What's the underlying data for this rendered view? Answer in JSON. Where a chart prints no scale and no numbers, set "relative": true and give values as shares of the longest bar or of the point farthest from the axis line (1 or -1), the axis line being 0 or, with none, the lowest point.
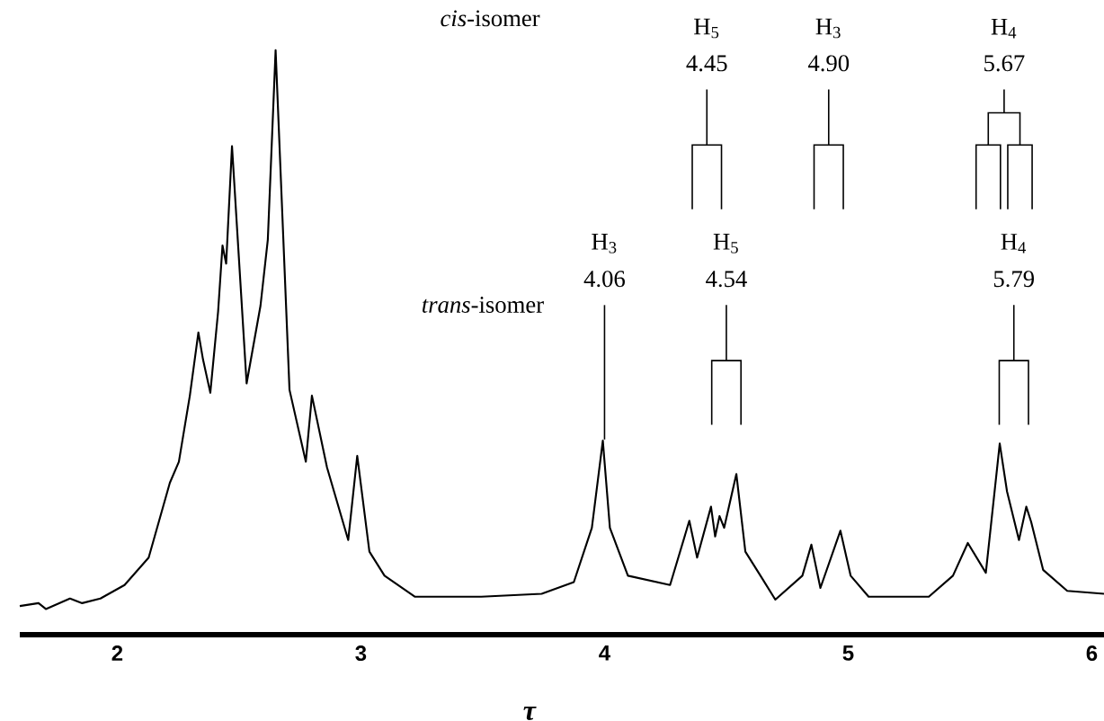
{
  "chart_data": {
    "type": "line",
    "relative": true,
    "xlabel": "τ",
    "xlim": [
      1.6,
      6.05
    ],
    "xticks": [
      2,
      3,
      4,
      5,
      6
    ],
    "x": [
      1.6,
      1.677,
      1.707,
      1.806,
      1.856,
      1.931,
      2.03,
      2.129,
      2.216,
      2.253,
      2.298,
      2.333,
      2.352,
      2.382,
      2.414,
      2.432,
      2.447,
      2.471,
      2.531,
      2.588,
      2.618,
      2.65,
      2.707,
      2.774,
      2.799,
      2.861,
      2.948,
      2.985,
      3.035,
      3.097,
      3.221,
      3.494,
      3.742,
      3.874,
      3.948,
      3.993,
      4.022,
      4.096,
      4.269,
      4.348,
      4.38,
      4.437,
      4.454,
      4.472,
      4.491,
      4.541,
      4.578,
      4.64,
      4.701,
      4.812,
      4.849,
      4.886,
      4.968,
      5.01,
      5.084,
      5.331,
      5.43,
      5.491,
      5.565,
      5.622,
      5.652,
      5.701,
      5.731,
      5.751,
      5.8,
      5.899,
      6.05
    ],
    "series": [
      {
        "color": "#000000",
        "values": [
          0.049,
          0.054,
          0.044,
          0.062,
          0.054,
          0.062,
          0.085,
          0.132,
          0.26,
          0.296,
          0.409,
          0.517,
          0.471,
          0.414,
          0.553,
          0.666,
          0.635,
          0.836,
          0.43,
          0.563,
          0.676,
          1.0,
          0.419,
          0.296,
          0.409,
          0.286,
          0.162,
          0.306,
          0.142,
          0.101,
          0.065,
          0.065,
          0.07,
          0.09,
          0.183,
          0.332,
          0.183,
          0.101,
          0.085,
          0.195,
          0.132,
          0.219,
          0.168,
          0.203,
          0.183,
          0.275,
          0.142,
          0.101,
          0.06,
          0.101,
          0.154,
          0.08,
          0.178,
          0.101,
          0.065,
          0.065,
          0.101,
          0.157,
          0.106,
          0.327,
          0.245,
          0.162,
          0.219,
          0.193,
          0.111,
          0.075,
          0.07
        ]
      }
    ],
    "annotations": [
      "*cis*-isomer",
      "*trans*-isomer",
      "H$_{5}$",
      "4.45",
      "H$_{3}$",
      "4.90",
      "H$_{4}$",
      "5.67",
      "H$_{3}$",
      "4.06",
      "H$_{5}$",
      "4.54",
      "H$_{4}$",
      "5.79"
    ]
  }
}
